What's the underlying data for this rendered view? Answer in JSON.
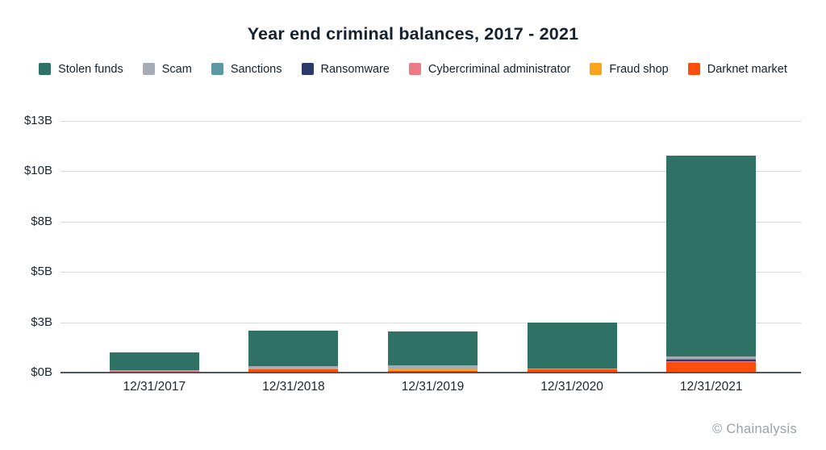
{
  "chart_data": {
    "type": "bar",
    "stacked": true,
    "title": "Year end criminal balances, 2017 - 2021",
    "categories": [
      "12/31/2017",
      "12/31/2018",
      "12/31/2019",
      "12/31/2020",
      "12/31/2021"
    ],
    "series": [
      {
        "name": "Stolen funds",
        "color": "#2f7164",
        "values": [
          0.86,
          1.76,
          1.68,
          2.28,
          9.96
        ]
      },
      {
        "name": "Scam",
        "color": "#a7abb3",
        "values": [
          0.05,
          0.18,
          0.2,
          0.06,
          0.12
        ]
      },
      {
        "name": "Sanctions",
        "color": "#5b98a1",
        "values": [
          0,
          0,
          0,
          0,
          0.06
        ]
      },
      {
        "name": "Ransomware",
        "color": "#2b3a68",
        "values": [
          0,
          0,
          0,
          0,
          0.08
        ]
      },
      {
        "name": "Cybercriminal administrator",
        "color": "#ed7b85",
        "values": [
          0.08,
          0,
          0,
          0,
          0.02
        ]
      },
      {
        "name": "Fraud shop",
        "color": "#f9a51b",
        "values": [
          0,
          0,
          0.09,
          0,
          0.02
        ]
      },
      {
        "name": "Darknet market",
        "color": "#fb4e0d",
        "values": [
          0.01,
          0.16,
          0.08,
          0.16,
          0.52
        ]
      }
    ],
    "totals_billions": [
      1.0,
      2.1,
      2.05,
      2.5,
      10.78
    ],
    "y_ticks": [
      {
        "value": 0,
        "label": "$0B"
      },
      {
        "value": 2.5,
        "label": "$3B"
      },
      {
        "value": 5,
        "label": "$5B"
      },
      {
        "value": 7.5,
        "label": "$8B"
      },
      {
        "value": 10,
        "label": "$10B"
      },
      {
        "value": 12.5,
        "label": "$13B"
      }
    ],
    "ylim": [
      0,
      12.94
    ],
    "y_unit": "USD billions",
    "grid": true,
    "legend_position": "top"
  },
  "footer": {
    "credit": "© Chainalysis"
  },
  "style": {
    "background": "#ffffff",
    "gridline_color": "#d8dadc",
    "baseline_color": "#51565c",
    "text_color": "#16212e",
    "footer_color": "#9da1a6"
  }
}
